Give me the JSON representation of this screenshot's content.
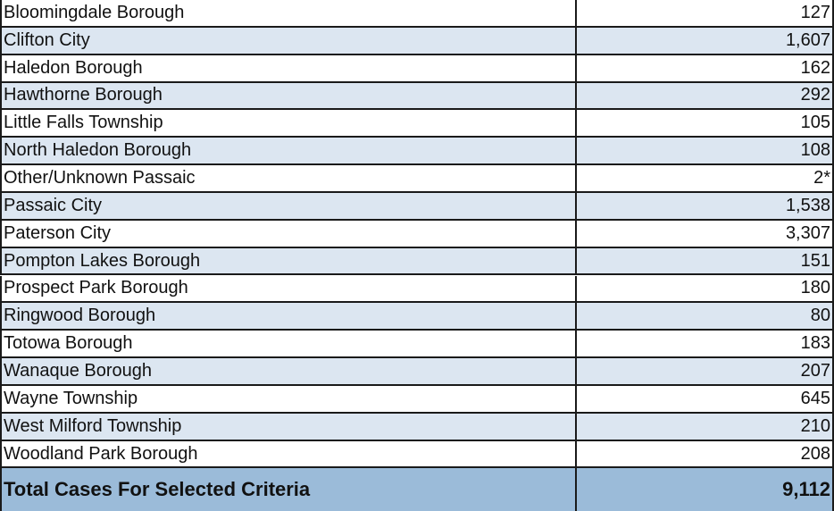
{
  "table": {
    "rows": [
      [
        "Bloomingdale Borough",
        "127"
      ],
      [
        "Clifton City",
        "1,607"
      ],
      [
        "Haledon Borough",
        "162"
      ],
      [
        "Hawthorne Borough",
        "292"
      ],
      [
        "Little Falls Township",
        "105"
      ],
      [
        "North Haledon Borough",
        "108"
      ],
      [
        "Other/Unknown Passaic",
        "2*"
      ],
      [
        "Passaic City",
        "1,538"
      ],
      [
        "Paterson City",
        "3,307"
      ],
      [
        "Pompton Lakes Borough",
        "151"
      ],
      [
        "Prospect Park Borough",
        "180"
      ],
      [
        "Ringwood Borough",
        "80"
      ],
      [
        "Totowa Borough",
        "183"
      ],
      [
        "Wanaque Borough",
        "207"
      ],
      [
        "Wayne Township",
        "645"
      ],
      [
        "West Milford Township",
        "210"
      ],
      [
        "Woodland Park Borough",
        "208"
      ]
    ],
    "total": [
      "Total Cases For Selected Criteria",
      "9,112"
    ]
  }
}
